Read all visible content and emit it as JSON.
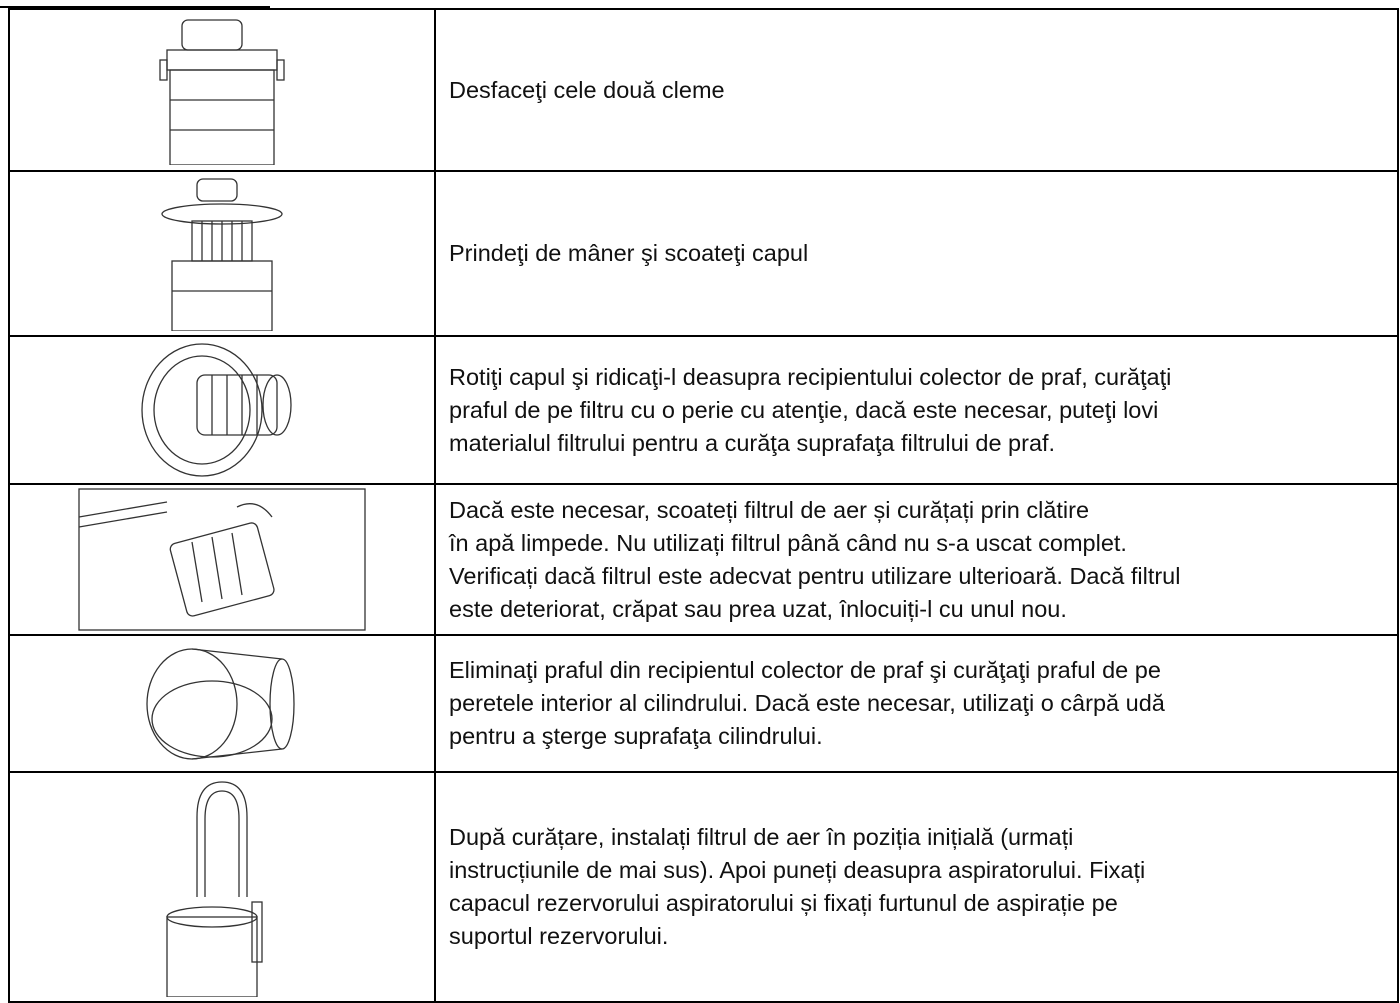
{
  "steps": [
    {
      "lines": [
        "Desfaceţi cele două cleme"
      ]
    },
    {
      "lines": [
        "Prindeţi de mâner şi scoateţi capul"
      ]
    },
    {
      "lines": [
        "Rotiţi capul şi ridicaţi-l deasupra recipientului colector de praf, curăţaţi",
        "praful de pe filtru cu o perie cu atenţie, dacă este necesar, puteţi lovi",
        "materialul filtrului pentru a curăţa suprafaţa filtrului de praf."
      ]
    },
    {
      "lines": [
        "Dacă este necesar, scoateți filtrul de aer și curățați prin clătire",
        "în apă limpede. Nu utilizați filtrul până când nu s-a uscat complet.",
        "Verificați dacă filtrul este adecvat pentru utilizare ulterioară. Dacă filtrul",
        "este deteriorat, crăpat sau prea uzat, înlocuiți-l cu unul nou."
      ]
    },
    {
      "lines": [
        "Eliminaţi praful din recipientul colector de praf şi curăţaţi praful de pe",
        "peretele interior al cilindrului. Dacă este necesar, utilizaţi o cârpă udă",
        "pentru a şterge suprafaţa cilindrului."
      ]
    },
    {
      "lines": [
        "După curățare, instalați filtrul de aer în poziția inițială (urmați",
        "instrucțiunile de mai sus). Apoi puneți deasupra aspiratorului. Fixați",
        "capacul rezervorului aspiratorului și fixați furtunul de aspirație pe",
        "suportul rezervorului."
      ]
    }
  ]
}
